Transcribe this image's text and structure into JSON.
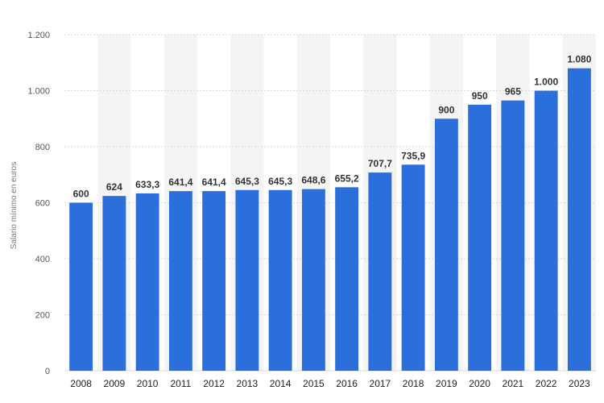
{
  "chart_data": {
    "type": "bar",
    "categories": [
      "2008",
      "2009",
      "2010",
      "2011",
      "2012",
      "2013",
      "2014",
      "2015",
      "2016",
      "2017",
      "2018",
      "2019",
      "2020",
      "2021",
      "2022",
      "2023"
    ],
    "values": [
      600,
      624,
      633.3,
      641.4,
      641.4,
      645.3,
      645.3,
      648.6,
      655.2,
      707.7,
      735.9,
      900,
      950,
      965,
      1000,
      1080
    ],
    "data_labels": [
      "600",
      "624",
      "633,3",
      "641,4",
      "641,4",
      "645,3",
      "645,3",
      "648,6",
      "655,2",
      "707,7",
      "735,9",
      "900",
      "950",
      "965",
      "1.000",
      "1.080"
    ],
    "yticks": [
      0,
      200,
      400,
      600,
      800,
      1000,
      1200
    ],
    "ytick_labels": [
      "0",
      "200",
      "400",
      "600",
      "800",
      "1.000",
      "1.200"
    ],
    "ylim": [
      0,
      1200
    ],
    "ylabel": "Salario mínimo en euros",
    "xlabel": "",
    "title": "",
    "grid": true,
    "colors": {
      "bar": "#2a6fdb",
      "grid": "#d9d9d9",
      "band": "#f4f4f4"
    }
  }
}
